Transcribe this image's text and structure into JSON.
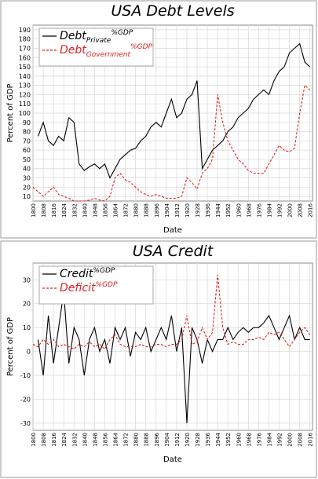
{
  "chart_data": [
    {
      "type": "line",
      "title": "USA Debt Levels",
      "x_label": "Date",
      "y_label": "Percent of GDP",
      "x": [
        1800,
        1804,
        1808,
        1812,
        1816,
        1820,
        1824,
        1828,
        1832,
        1836,
        1840,
        1844,
        1848,
        1852,
        1856,
        1860,
        1864,
        1868,
        1872,
        1876,
        1880,
        1884,
        1888,
        1892,
        1896,
        1900,
        1904,
        1908,
        1912,
        1916,
        1920,
        1924,
        1928,
        1932,
        1936,
        1940,
        1944,
        1948,
        1952,
        1956,
        1960,
        1964,
        1968,
        1972,
        1976,
        1980,
        1984,
        1988,
        1992,
        1996,
        2000,
        2004,
        2008,
        2012,
        2016
      ],
      "series": [
        {
          "name": "Debt",
          "subscript": "Private",
          "superscript": "%GDP",
          "color": "#000000",
          "linestyle": "solid",
          "values": [
            null,
            75,
            90,
            70,
            65,
            75,
            70,
            95,
            90,
            45,
            38,
            42,
            45,
            40,
            45,
            30,
            40,
            50,
            55,
            60,
            62,
            70,
            75,
            85,
            90,
            85,
            100,
            115,
            95,
            100,
            115,
            120,
            135,
            40,
            50,
            60,
            65,
            70,
            80,
            85,
            95,
            100,
            105,
            115,
            120,
            125,
            120,
            135,
            145,
            150,
            165,
            170,
            175,
            155,
            150
          ]
        },
        {
          "name": "Debt",
          "subscript": "Government",
          "superscript": "%GDP",
          "color": "#e02020",
          "linestyle": "dashed",
          "values": [
            20,
            15,
            10,
            15,
            20,
            12,
            10,
            8,
            5,
            5,
            5,
            6,
            8,
            6,
            5,
            10,
            30,
            35,
            28,
            25,
            20,
            15,
            12,
            10,
            12,
            10,
            8,
            8,
            8,
            10,
            30,
            25,
            18,
            35,
            40,
            50,
            120,
            90,
            70,
            60,
            50,
            45,
            38,
            35,
            35,
            35,
            45,
            55,
            65,
            60,
            58,
            62,
            100,
            130,
            125
          ]
        }
      ],
      "xlim": [
        1800,
        2018
      ],
      "xticks": [
        1800,
        1808,
        1816,
        1824,
        1832,
        1840,
        1848,
        1856,
        1864,
        1872,
        1880,
        1888,
        1896,
        1904,
        1912,
        1920,
        1928,
        1936,
        1944,
        1952,
        1960,
        1968,
        1976,
        1984,
        1992,
        2000,
        2008,
        2016
      ],
      "ylim": [
        5,
        195
      ],
      "yticks": [
        10,
        20,
        30,
        40,
        50,
        60,
        70,
        80,
        90,
        100,
        110,
        120,
        130,
        140,
        150,
        160,
        170,
        180,
        190
      ],
      "grid": true,
      "legend": "upper left"
    },
    {
      "type": "line",
      "title": "USA Credit",
      "x_label": "Date",
      "y_label": "Percent of GDP",
      "x": [
        1800,
        1804,
        1808,
        1812,
        1816,
        1820,
        1824,
        1828,
        1832,
        1836,
        1840,
        1844,
        1848,
        1852,
        1856,
        1860,
        1864,
        1868,
        1872,
        1876,
        1880,
        1884,
        1888,
        1892,
        1896,
        1900,
        1904,
        1908,
        1912,
        1916,
        1920,
        1924,
        1928,
        1932,
        1936,
        1940,
        1944,
        1948,
        1952,
        1956,
        1960,
        1964,
        1968,
        1972,
        1976,
        1980,
        1984,
        1988,
        1992,
        1996,
        2000,
        2004,
        2008,
        2012,
        2016
      ],
      "series": [
        {
          "name": "Credit",
          "superscript": "%GDP",
          "color": "#000000",
          "linestyle": "solid",
          "values": [
            null,
            5,
            -10,
            15,
            -5,
            10,
            25,
            -5,
            10,
            5,
            -10,
            5,
            10,
            0,
            5,
            -5,
            10,
            5,
            10,
            -2,
            8,
            5,
            10,
            0,
            5,
            10,
            5,
            15,
            0,
            10,
            -30,
            10,
            5,
            -5,
            5,
            0,
            5,
            5,
            10,
            5,
            8,
            10,
            8,
            10,
            10,
            12,
            15,
            10,
            5,
            10,
            15,
            5,
            10,
            5,
            5
          ]
        },
        {
          "name": "Deficit",
          "superscript": "%GDP",
          "color": "#e02020",
          "linestyle": "dashed",
          "values": [
            3,
            2,
            5,
            3,
            5,
            2,
            3,
            2,
            1,
            3,
            2,
            4,
            2,
            3,
            1,
            5,
            7,
            3,
            2,
            2,
            2,
            3,
            2,
            2,
            3,
            3,
            2,
            3,
            3,
            5,
            15,
            3,
            4,
            10,
            5,
            8,
            32,
            10,
            3,
            4,
            3,
            3,
            5,
            5,
            6,
            5,
            8,
            7,
            8,
            5,
            2,
            5,
            8,
            10,
            7
          ]
        }
      ],
      "xlim": [
        1800,
        2018
      ],
      "xticks": [
        1800,
        1808,
        1816,
        1824,
        1832,
        1840,
        1848,
        1856,
        1864,
        1872,
        1880,
        1888,
        1896,
        1904,
        1912,
        1920,
        1928,
        1936,
        1944,
        1952,
        1960,
        1968,
        1976,
        1984,
        1992,
        2000,
        2008,
        2016
      ],
      "ylim": [
        -33,
        37
      ],
      "yticks": [
        -30,
        -20,
        -10,
        0,
        10,
        20,
        30
      ],
      "grid": true,
      "legend": "upper left"
    }
  ]
}
